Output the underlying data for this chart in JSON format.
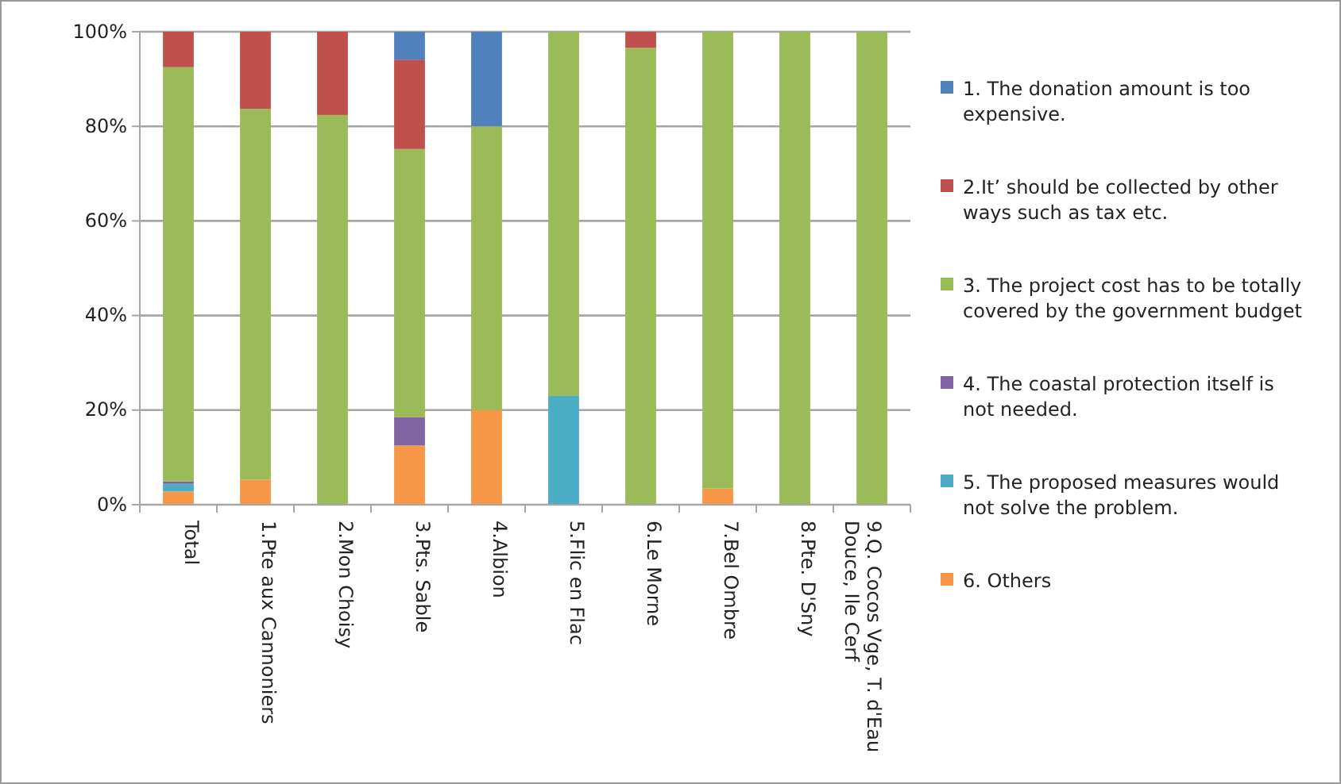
{
  "chart_data": {
    "type": "bar",
    "stacked": true,
    "categories": [
      "Total",
      "1.Pte aux Cannoniers",
      "2.Mon Choisy",
      "3.Pts. Sable",
      "4.Albion",
      "5.Flic en Flac",
      "6.Le Morne",
      "7.Bel Ombre",
      "8.Pte. D'Sny",
      "9.Q. Cocos Vge, T. d'Eau Douce, Ile Cerf"
    ],
    "series": [
      {
        "name": "6. Others",
        "color": "#f79646",
        "values": [
          2.8,
          5.3,
          0,
          12.5,
          20,
          0,
          0,
          3.4,
          0,
          0
        ]
      },
      {
        "name": "5. The proposed measures would not solve the problem.",
        "color": "#4bacc6",
        "values": [
          1.6,
          0,
          0,
          0,
          0,
          23,
          0,
          0,
          0,
          0
        ]
      },
      {
        "name": "4. The coastal protection itself is not needed.",
        "color": "#8064a2",
        "values": [
          0.5,
          0,
          0,
          6,
          0,
          0,
          0,
          0,
          0,
          0
        ]
      },
      {
        "name": "3. The project cost has to be totally covered by the government budget",
        "color": "#9bbb59",
        "values": [
          87.6,
          78.4,
          82.4,
          56.7,
          60,
          77,
          96.6,
          96.6,
          100,
          100
        ]
      },
      {
        "name": "2.It’ should be collected by other ways such as tax etc.",
        "color": "#c0504d",
        "values": [
          7.5,
          16.3,
          17.6,
          18.9,
          0,
          0,
          3.4,
          0,
          0,
          0
        ]
      },
      {
        "name": "1. The donation amount is too expensive.",
        "color": "#4f81bd",
        "values": [
          0,
          0,
          0,
          5.9,
          20,
          0,
          0,
          0,
          0,
          0
        ]
      }
    ],
    "ylim": [
      0,
      100
    ],
    "yticks": [
      {
        "value": 0,
        "label": "0%"
      },
      {
        "value": 20,
        "label": "20%"
      },
      {
        "value": 40,
        "label": "40%"
      },
      {
        "value": 60,
        "label": "60%"
      },
      {
        "value": 80,
        "label": "80%"
      },
      {
        "value": 100,
        "label": "100%"
      }
    ],
    "grid": "y",
    "legend": "right"
  }
}
